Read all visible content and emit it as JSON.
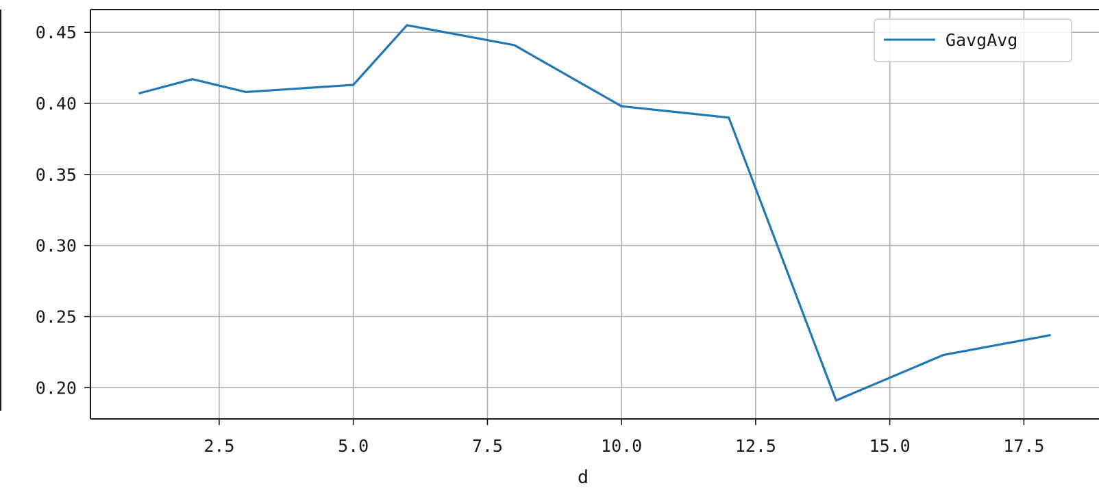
{
  "chart_data": {
    "type": "line",
    "xlabel": "d",
    "ylabel": "",
    "xlim": [
      0.1,
      18.9
    ],
    "ylim": [
      0.178,
      0.466
    ],
    "x_ticks": [
      2.5,
      5.0,
      7.5,
      10.0,
      12.5,
      15.0,
      17.5
    ],
    "x_tick_labels": [
      "2.5",
      "5.0",
      "7.5",
      "10.0",
      "12.5",
      "15.0",
      "17.5"
    ],
    "y_ticks": [
      0.2,
      0.25,
      0.3,
      0.35,
      0.4,
      0.45
    ],
    "y_tick_labels": [
      "0.20",
      "0.25",
      "0.30",
      "0.35",
      "0.40",
      "0.45"
    ],
    "grid": true,
    "legend_position": "top-right",
    "series": [
      {
        "name": "GavgAvg",
        "color": "#1f77b4",
        "x": [
          1,
          2,
          3,
          5,
          6,
          8,
          10,
          12,
          14,
          16,
          18
        ],
        "y": [
          0.407,
          0.417,
          0.408,
          0.413,
          0.455,
          0.441,
          0.398,
          0.39,
          0.191,
          0.223,
          0.237
        ]
      }
    ]
  }
}
